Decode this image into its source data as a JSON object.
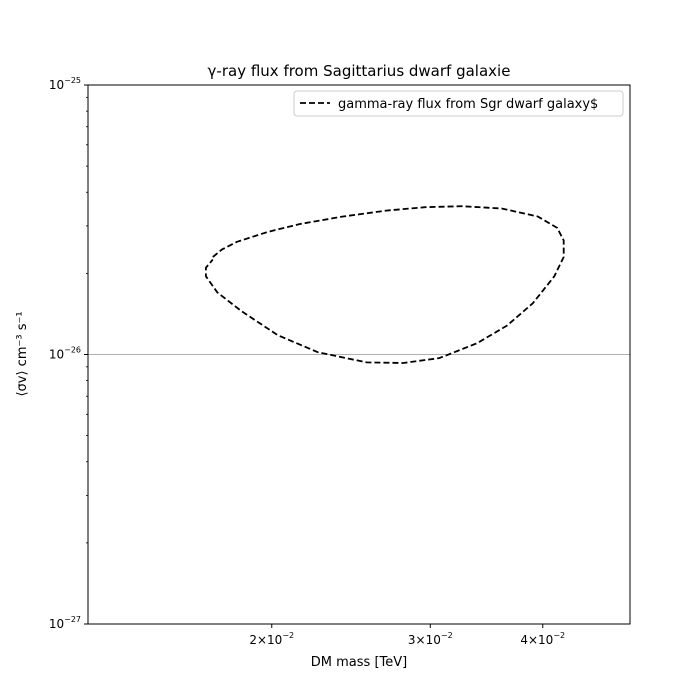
{
  "chart_data": {
    "type": "line",
    "title": "γ-ray flux from Sagittarius dwarf galaxie",
    "xlabel": "DM mass [TeV]",
    "ylabel": "⟨σv⟩ cm⁻³ s⁻¹",
    "xscale": "log",
    "yscale": "log",
    "xlim": [
      0.0125,
      0.05
    ],
    "ylim": [
      1e-27,
      1e-25
    ],
    "x_ticks": [
      {
        "value": 0.02,
        "mantissa": "2",
        "base": "10",
        "exp": "−2"
      },
      {
        "value": 0.03,
        "mantissa": "3",
        "base": "10",
        "exp": "−2"
      },
      {
        "value": 0.04,
        "mantissa": "4",
        "base": "10",
        "exp": "−2"
      }
    ],
    "y_ticks": [
      {
        "value": 1e-27,
        "base": "10",
        "exp": "−27"
      },
      {
        "value": 1e-26,
        "base": "10",
        "exp": "−26"
      },
      {
        "value": 1e-25,
        "base": "10",
        "exp": "−25"
      }
    ],
    "hline": 1e-26,
    "legend_position": "top-right",
    "series": [
      {
        "name": "gamma-ray flux from Sgr dwarf galaxy$",
        "color": "#000000",
        "style": "dashed",
        "x": [
          0.0172,
          0.0176,
          0.0183,
          0.0198,
          0.0215,
          0.024,
          0.0268,
          0.0296,
          0.0325,
          0.036,
          0.0395,
          0.0415,
          0.0422,
          0.0422,
          0.0412,
          0.039,
          0.0365,
          0.0338,
          0.0307,
          0.028,
          0.0255,
          0.0225,
          0.0203,
          0.0185,
          0.0174,
          0.0169,
          0.0169,
          0.0172
        ],
        "y": [
          2.3e-26,
          2.45e-26,
          2.62e-26,
          2.85e-26,
          3.05e-26,
          3.25e-26,
          3.42e-26,
          3.52e-26,
          3.55e-26,
          3.48e-26,
          3.25e-26,
          2.95e-26,
          2.65e-26,
          2.3e-26,
          1.95e-26,
          1.55e-26,
          1.28e-26,
          1.1e-26,
          9.7e-27,
          9.3e-27,
          9.35e-27,
          1.02e-26,
          1.18e-26,
          1.45e-26,
          1.7e-26,
          1.95e-26,
          2.1e-26,
          2.25e-26
        ]
      }
    ]
  }
}
